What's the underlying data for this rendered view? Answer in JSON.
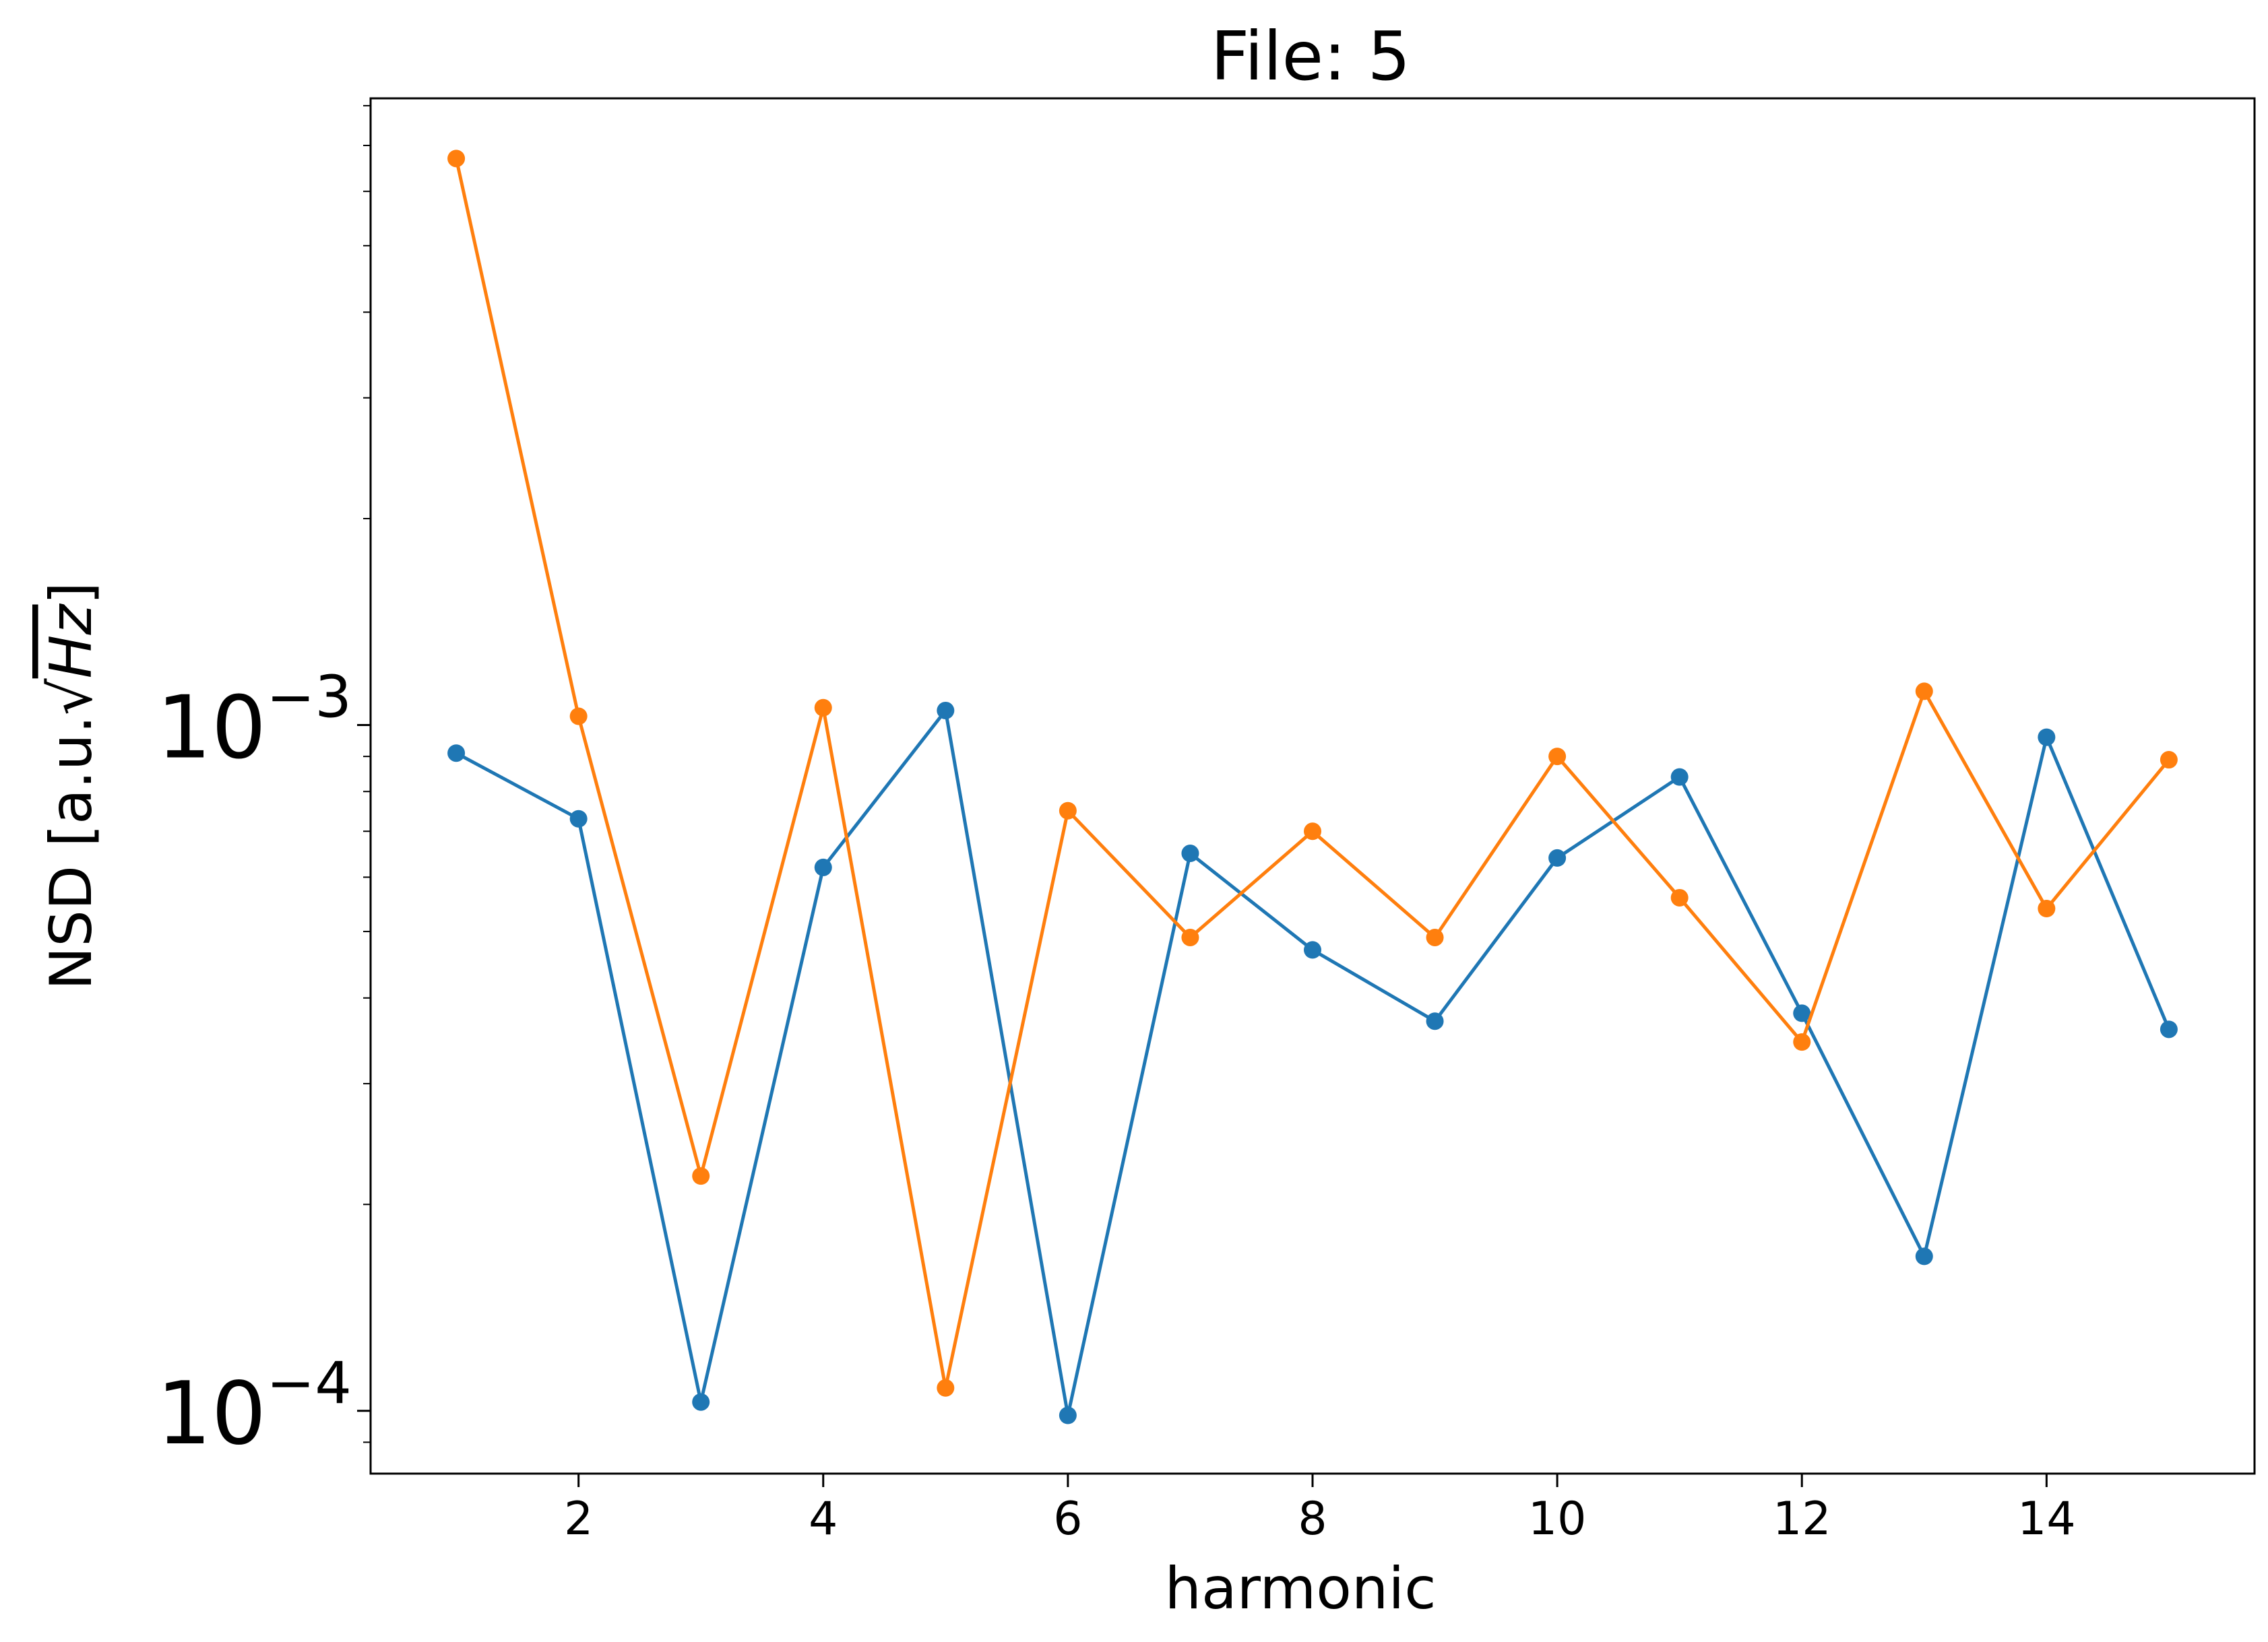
{
  "chart_data": {
    "type": "line",
    "title": "File: 5",
    "xlabel": "harmonic",
    "ylabel": "NSD [a.u.√Hz]",
    "ylabel_parts": {
      "prefix": "NSD [a.u.",
      "root": "√",
      "radicand": "Hz",
      "suffix": "]"
    },
    "xlim": [
      0.3,
      15.7
    ],
    "ylim": [
      8.1e-05,
      0.0082
    ],
    "yscale": "log",
    "grid": false,
    "legend": "none",
    "x_ticks": [
      {
        "value": 2,
        "label": "2"
      },
      {
        "value": 4,
        "label": "4"
      },
      {
        "value": 6,
        "label": "6"
      },
      {
        "value": 8,
        "label": "8"
      },
      {
        "value": 10,
        "label": "10"
      },
      {
        "value": 12,
        "label": "12"
      },
      {
        "value": 14,
        "label": "14"
      }
    ],
    "y_ticks": [
      {
        "value": 0.0001,
        "base": "10",
        "exponent": "−4"
      },
      {
        "value": 0.001,
        "base": "10",
        "exponent": "−3"
      }
    ],
    "x": [
      1,
      2,
      3,
      4,
      5,
      6,
      7,
      8,
      9,
      10,
      11,
      12,
      13,
      14,
      15
    ],
    "series": [
      {
        "color": "#1f77b4",
        "values": [
          0.00091,
          0.00073,
          0.000103,
          0.00062,
          0.00105,
          9.85e-05,
          0.00065,
          0.00047,
          0.00037,
          0.00064,
          0.00084,
          0.00038,
          0.000168,
          0.00096,
          0.00036
        ]
      },
      {
        "color": "#ff7f0e",
        "values": [
          0.0067,
          0.00103,
          0.00022,
          0.00106,
          0.000108,
          0.00075,
          0.00049,
          0.0007,
          0.00049,
          0.0009,
          0.00056,
          0.000345,
          0.00112,
          0.00054,
          0.00089
        ]
      }
    ]
  }
}
